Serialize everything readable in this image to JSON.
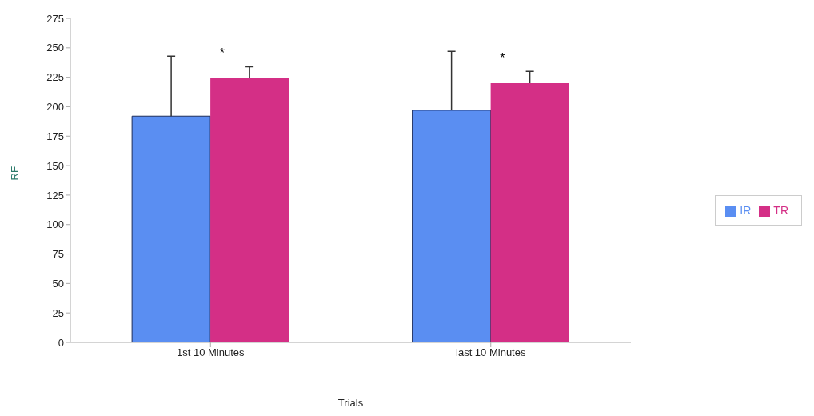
{
  "chart_data": {
    "type": "bar",
    "xlabel": "Trials",
    "ylabel": "RE",
    "categories": [
      "1st 10 Minutes",
      "last 10 Minutes"
    ],
    "series": [
      {
        "name": "IR",
        "color": "#5a8ef2",
        "values": [
          192,
          197
        ],
        "errors": [
          [
            192,
            243
          ],
          [
            197,
            247
          ]
        ]
      },
      {
        "name": "TR",
        "color": "#d42f86",
        "values": [
          224,
          220
        ],
        "errors": [
          [
            224,
            234
          ],
          [
            220,
            230
          ]
        ]
      }
    ],
    "ylim": [
      0,
      275
    ],
    "yticks": [
      0,
      25,
      50,
      75,
      100,
      125,
      150,
      175,
      200,
      225,
      250,
      275
    ],
    "grid": false,
    "legend": "right",
    "annotations": [
      "*",
      "*"
    ]
  }
}
